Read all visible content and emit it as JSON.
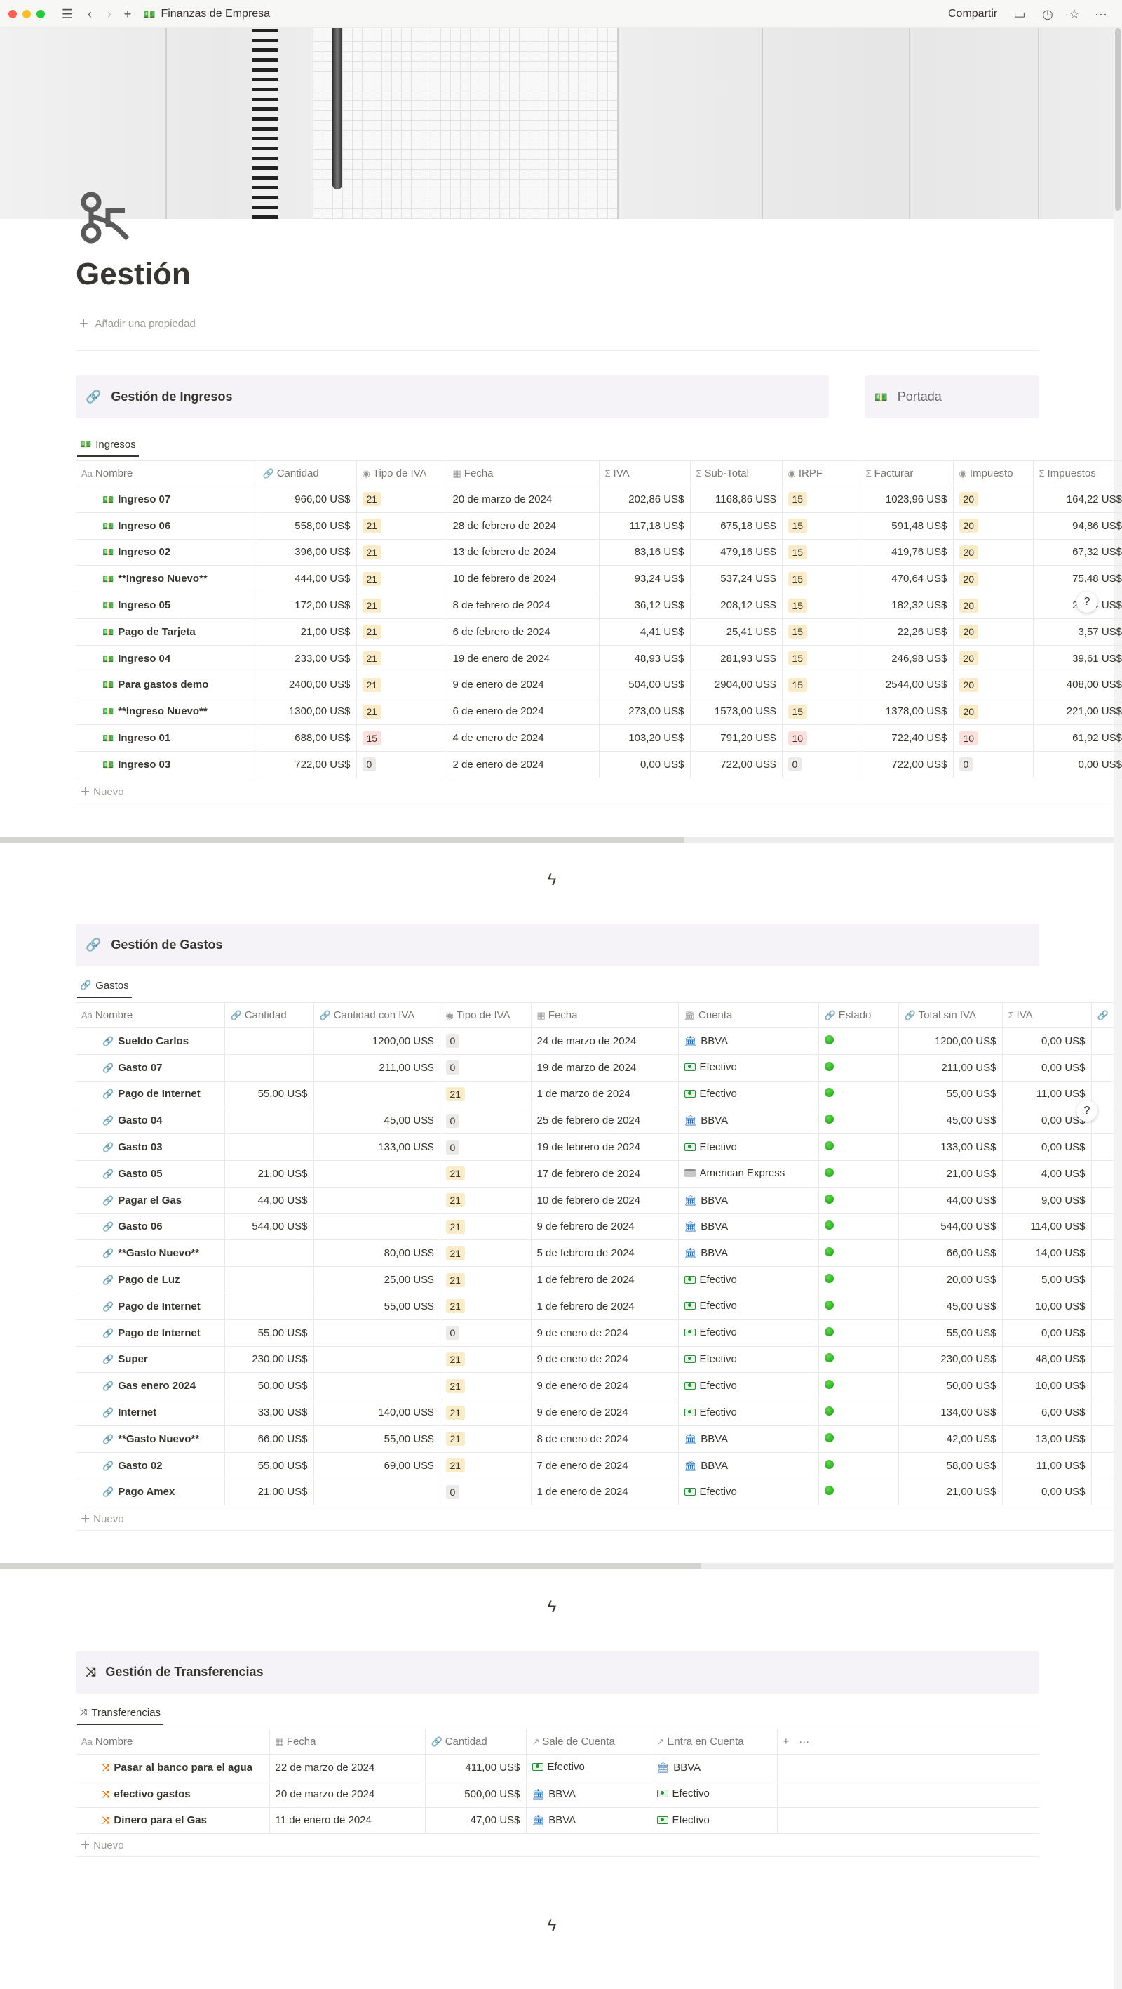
{
  "window": {
    "breadcrumb": "Finanzas de Empresa",
    "share_label": "Compartir"
  },
  "page": {
    "title": "Gestión",
    "add_property": "Añadir una propiedad"
  },
  "ingresos": {
    "callout": "Gestión de Ingresos",
    "portada": "Portada",
    "view_tab": "Ingresos",
    "columns": [
      "Nombre",
      "Cantidad",
      "Tipo de IVA",
      "Fecha",
      "IVA",
      "Sub-Total",
      "IRPF",
      "Facturar",
      "Impuesto",
      "Impuestos"
    ],
    "rows": [
      {
        "name": "Ingreso 07",
        "cantidad": "966,00 US$",
        "tipo": "21",
        "tipo_c": "y",
        "fecha": "20 de marzo de 2024",
        "iva": "202,86 US$",
        "sub": "1168,86 US$",
        "irpf": "15",
        "irpf_c": "y",
        "facturar": "1023,96 US$",
        "imp": "20",
        "imp_c": "y",
        "imps": "164,22 US$"
      },
      {
        "name": "Ingreso 06",
        "cantidad": "558,00 US$",
        "tipo": "21",
        "tipo_c": "y",
        "fecha": "28 de febrero de 2024",
        "iva": "117,18 US$",
        "sub": "675,18 US$",
        "irpf": "15",
        "irpf_c": "y",
        "facturar": "591,48 US$",
        "imp": "20",
        "imp_c": "y",
        "imps": "94,86 US$"
      },
      {
        "name": "Ingreso 02",
        "cantidad": "396,00 US$",
        "tipo": "21",
        "tipo_c": "y",
        "fecha": "13 de febrero de 2024",
        "iva": "83,16 US$",
        "sub": "479,16 US$",
        "irpf": "15",
        "irpf_c": "y",
        "facturar": "419,76 US$",
        "imp": "20",
        "imp_c": "y",
        "imps": "67,32 US$"
      },
      {
        "name": "**Ingreso Nuevo**",
        "cantidad": "444,00 US$",
        "tipo": "21",
        "tipo_c": "y",
        "fecha": "10 de febrero de 2024",
        "iva": "93,24 US$",
        "sub": "537,24 US$",
        "irpf": "15",
        "irpf_c": "y",
        "facturar": "470,64 US$",
        "imp": "20",
        "imp_c": "y",
        "imps": "75,48 US$"
      },
      {
        "name": "Ingreso 05",
        "cantidad": "172,00 US$",
        "tipo": "21",
        "tipo_c": "y",
        "fecha": "8 de febrero de 2024",
        "iva": "36,12 US$",
        "sub": "208,12 US$",
        "irpf": "15",
        "irpf_c": "y",
        "facturar": "182,32 US$",
        "imp": "20",
        "imp_c": "y",
        "imps": "29,24 US$"
      },
      {
        "name": "Pago de Tarjeta",
        "cantidad": "21,00 US$",
        "tipo": "21",
        "tipo_c": "y",
        "fecha": "6 de febrero de 2024",
        "iva": "4,41 US$",
        "sub": "25,41 US$",
        "irpf": "15",
        "irpf_c": "y",
        "facturar": "22,26 US$",
        "imp": "20",
        "imp_c": "y",
        "imps": "3,57 US$"
      },
      {
        "name": "Ingreso 04",
        "cantidad": "233,00 US$",
        "tipo": "21",
        "tipo_c": "y",
        "fecha": "19 de enero de 2024",
        "iva": "48,93 US$",
        "sub": "281,93 US$",
        "irpf": "15",
        "irpf_c": "y",
        "facturar": "246,98 US$",
        "imp": "20",
        "imp_c": "y",
        "imps": "39,61 US$"
      },
      {
        "name": "Para gastos demo",
        "cantidad": "2400,00 US$",
        "tipo": "21",
        "tipo_c": "y",
        "fecha": "9 de enero de 2024",
        "iva": "504,00 US$",
        "sub": "2904,00 US$",
        "irpf": "15",
        "irpf_c": "y",
        "facturar": "2544,00 US$",
        "imp": "20",
        "imp_c": "y",
        "imps": "408,00 US$"
      },
      {
        "name": "**Ingreso Nuevo**",
        "cantidad": "1300,00 US$",
        "tipo": "21",
        "tipo_c": "y",
        "fecha": "6 de enero de 2024",
        "iva": "273,00 US$",
        "sub": "1573,00 US$",
        "irpf": "15",
        "irpf_c": "y",
        "facturar": "1378,00 US$",
        "imp": "20",
        "imp_c": "y",
        "imps": "221,00 US$"
      },
      {
        "name": "Ingreso 01",
        "cantidad": "688,00 US$",
        "tipo": "15",
        "tipo_c": "r",
        "fecha": "4 de enero de 2024",
        "iva": "103,20 US$",
        "sub": "791,20 US$",
        "irpf": "10",
        "irpf_c": "r",
        "facturar": "722,40 US$",
        "imp": "10",
        "imp_c": "r",
        "imps": "61,92 US$"
      },
      {
        "name": "Ingreso 03",
        "cantidad": "722,00 US$",
        "tipo": "0",
        "tipo_c": "g",
        "fecha": "2 de enero de 2024",
        "iva": "0,00 US$",
        "sub": "722,00 US$",
        "irpf": "0",
        "irpf_c": "g",
        "facturar": "722,00 US$",
        "imp": "0",
        "imp_c": "g",
        "imps": "0,00 US$"
      }
    ],
    "new_label": "Nuevo"
  },
  "gastos": {
    "callout": "Gestión de Gastos",
    "view_tab": "Gastos",
    "columns": [
      "Nombre",
      "Cantidad",
      "Cantidad con IVA",
      "Tipo de IVA",
      "Fecha",
      "Cuenta",
      "Estado",
      "Total sin IVA",
      "IVA"
    ],
    "rows": [
      {
        "name": "Sueldo Carlos",
        "cantidad": "",
        "con_iva": "1200,00 US$",
        "tipo": "0",
        "tipo_c": "g",
        "fecha": "24 de marzo de 2024",
        "cuenta": "BBVA",
        "cuenta_icon": "bank-icon",
        "total": "1200,00 US$",
        "iva": "0,00 US$"
      },
      {
        "name": "Gasto 07",
        "cantidad": "",
        "con_iva": "211,00 US$",
        "tipo": "0",
        "tipo_c": "g",
        "fecha": "19 de marzo de 2024",
        "cuenta": "Efectivo",
        "cuenta_icon": "cash-icon",
        "total": "211,00 US$",
        "iva": "0,00 US$"
      },
      {
        "name": "Pago de Internet",
        "cantidad": "55,00 US$",
        "con_iva": "",
        "tipo": "21",
        "tipo_c": "y",
        "fecha": "1 de marzo de 2024",
        "cuenta": "Efectivo",
        "cuenta_icon": "cash-icon",
        "total": "55,00 US$",
        "iva": "11,00 US$"
      },
      {
        "name": "Gasto 04",
        "cantidad": "",
        "con_iva": "45,00 US$",
        "tipo": "0",
        "tipo_c": "g",
        "fecha": "25 de febrero de 2024",
        "cuenta": "BBVA",
        "cuenta_icon": "bank-icon",
        "total": "45,00 US$",
        "iva": "0,00 US$"
      },
      {
        "name": "Gasto 03",
        "cantidad": "",
        "con_iva": "133,00 US$",
        "tipo": "0",
        "tipo_c": "g",
        "fecha": "19 de febrero de 2024",
        "cuenta": "Efectivo",
        "cuenta_icon": "cash-icon",
        "total": "133,00 US$",
        "iva": "0,00 US$"
      },
      {
        "name": "Gasto 05",
        "cantidad": "21,00 US$",
        "con_iva": "",
        "tipo": "21",
        "tipo_c": "y",
        "fecha": "17 de febrero de 2024",
        "cuenta": "American Express",
        "cuenta_icon": "card-icon",
        "total": "21,00 US$",
        "iva": "4,00 US$"
      },
      {
        "name": "Pagar el Gas",
        "cantidad": "44,00 US$",
        "con_iva": "",
        "tipo": "21",
        "tipo_c": "y",
        "fecha": "10 de febrero de 2024",
        "cuenta": "BBVA",
        "cuenta_icon": "bank-icon",
        "total": "44,00 US$",
        "iva": "9,00 US$"
      },
      {
        "name": "Gasto 06",
        "cantidad": "544,00 US$",
        "con_iva": "",
        "tipo": "21",
        "tipo_c": "y",
        "fecha": "9 de febrero de 2024",
        "cuenta": "BBVA",
        "cuenta_icon": "bank-icon",
        "total": "544,00 US$",
        "iva": "114,00 US$"
      },
      {
        "name": "**Gasto Nuevo**",
        "cantidad": "",
        "con_iva": "80,00 US$",
        "tipo": "21",
        "tipo_c": "y",
        "fecha": "5 de febrero de 2024",
        "cuenta": "BBVA",
        "cuenta_icon": "bank-icon",
        "total": "66,00 US$",
        "iva": "14,00 US$"
      },
      {
        "name": "Pago de Luz",
        "cantidad": "",
        "con_iva": "25,00 US$",
        "tipo": "21",
        "tipo_c": "y",
        "fecha": "1 de febrero de 2024",
        "cuenta": "Efectivo",
        "cuenta_icon": "cash-icon",
        "total": "20,00 US$",
        "iva": "5,00 US$"
      },
      {
        "name": "Pago de Internet",
        "cantidad": "",
        "con_iva": "55,00 US$",
        "tipo": "21",
        "tipo_c": "y",
        "fecha": "1 de febrero de 2024",
        "cuenta": "Efectivo",
        "cuenta_icon": "cash-icon",
        "total": "45,00 US$",
        "iva": "10,00 US$"
      },
      {
        "name": "Pago de Internet",
        "cantidad": "55,00 US$",
        "con_iva": "",
        "tipo": "0",
        "tipo_c": "g",
        "fecha": "9 de enero de 2024",
        "cuenta": "Efectivo",
        "cuenta_icon": "cash-icon",
        "total": "55,00 US$",
        "iva": "0,00 US$"
      },
      {
        "name": "Super",
        "cantidad": "230,00 US$",
        "con_iva": "",
        "tipo": "21",
        "tipo_c": "y",
        "fecha": "9 de enero de 2024",
        "cuenta": "Efectivo",
        "cuenta_icon": "cash-icon",
        "total": "230,00 US$",
        "iva": "48,00 US$"
      },
      {
        "name": "Gas enero 2024",
        "cantidad": "50,00 US$",
        "con_iva": "",
        "tipo": "21",
        "tipo_c": "y",
        "fecha": "9 de enero de 2024",
        "cuenta": "Efectivo",
        "cuenta_icon": "cash-icon",
        "total": "50,00 US$",
        "iva": "10,00 US$"
      },
      {
        "name": "Internet",
        "cantidad": "33,00 US$",
        "con_iva": "140,00 US$",
        "tipo": "21",
        "tipo_c": "y",
        "fecha": "9 de enero de 2024",
        "cuenta": "Efectivo",
        "cuenta_icon": "cash-icon",
        "total": "134,00 US$",
        "iva": "6,00 US$"
      },
      {
        "name": "**Gasto Nuevo**",
        "cantidad": "66,00 US$",
        "con_iva": "55,00 US$",
        "tipo": "21",
        "tipo_c": "y",
        "fecha": "8 de enero de 2024",
        "cuenta": "BBVA",
        "cuenta_icon": "bank-icon",
        "total": "42,00 US$",
        "iva": "13,00 US$"
      },
      {
        "name": "Gasto 02",
        "cantidad": "55,00 US$",
        "con_iva": "69,00 US$",
        "tipo": "21",
        "tipo_c": "y",
        "fecha": "7 de enero de 2024",
        "cuenta": "BBVA",
        "cuenta_icon": "bank-icon",
        "total": "58,00 US$",
        "iva": "11,00 US$"
      },
      {
        "name": "Pago Amex",
        "cantidad": "21,00 US$",
        "con_iva": "",
        "tipo": "0",
        "tipo_c": "g",
        "fecha": "1 de enero de 2024",
        "cuenta": "Efectivo",
        "cuenta_icon": "cash-icon",
        "total": "21,00 US$",
        "iva": "0,00 US$"
      }
    ],
    "new_label": "Nuevo"
  },
  "transferencias": {
    "callout": "Gestión de Transferencias",
    "view_tab": "Transferencias",
    "columns": [
      "Nombre",
      "Fecha",
      "Cantidad",
      "Sale de Cuenta",
      "Entra en Cuenta"
    ],
    "rows": [
      {
        "name": "Pasar al banco para el agua",
        "fecha": "22 de marzo de 2024",
        "cantidad": "411,00 US$",
        "sale": "Efectivo",
        "sale_icon": "cash-icon",
        "entra": "BBVA",
        "entra_icon": "bank-icon"
      },
      {
        "name": "efectivo gastos",
        "fecha": "20 de marzo de 2024",
        "cantidad": "500,00 US$",
        "sale": "BBVA",
        "sale_icon": "bank-icon",
        "entra": "Efectivo",
        "entra_icon": "cash-icon"
      },
      {
        "name": "Dinero para el Gas",
        "fecha": "11 de enero de 2024",
        "cantidad": "47,00 US$",
        "sale": "BBVA",
        "sale_icon": "bank-icon",
        "entra": "Efectivo",
        "entra_icon": "cash-icon"
      }
    ],
    "new_label": "Nuevo"
  },
  "colors": {
    "tag_yellow": "#fbecc9",
    "tag_red": "#fde0dc",
    "tag_gray": "#ebeae8",
    "callout_bg": "#f5f2f8",
    "status_green": "#2ecc28"
  }
}
